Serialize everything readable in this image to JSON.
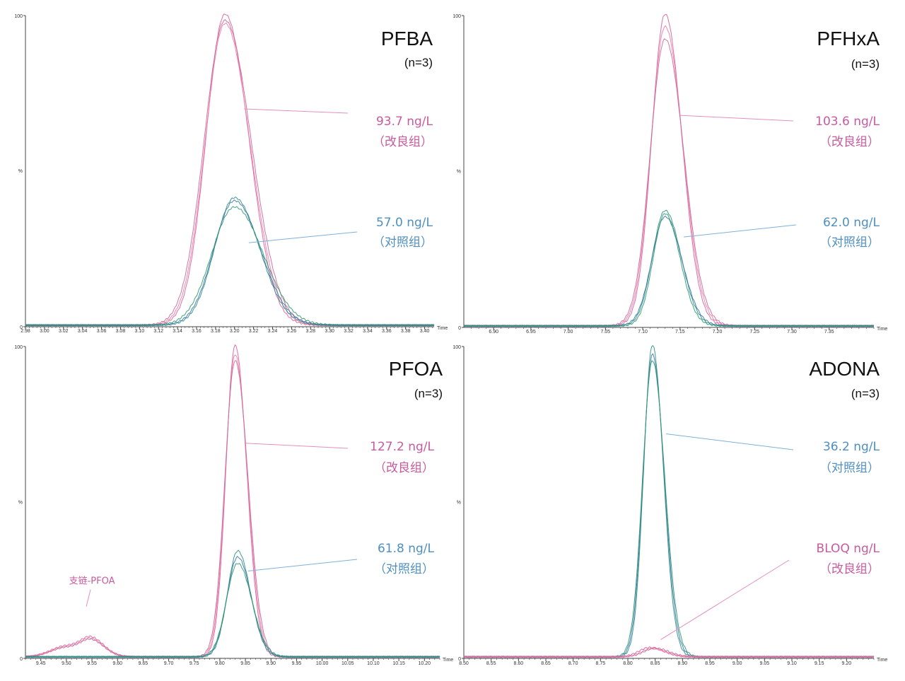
{
  "colors": {
    "pink": "#c85a9e",
    "pink_line": "#e28fbf",
    "blue": "#4f8fbf",
    "blue_line": "#7fb1d6",
    "trace_pink": [
      "#d9609e",
      "#f07aa6",
      "#c9699a"
    ],
    "trace_blue": [
      "#2f8f7f",
      "#3a72b0",
      "#2a9a6a"
    ],
    "axis": "#444444"
  },
  "chart_data": [
    {
      "id": "pfba",
      "type": "line",
      "title": "PFBA",
      "subtitle": "(n=3)",
      "xlabel": "Time",
      "ylabel": "%",
      "xlim": [
        2.98,
        3.41
      ],
      "ylim": [
        0,
        100
      ],
      "grid": false,
      "x_ticks": [
        "2.98",
        "3.00",
        "3.02",
        "3.04",
        "3.06",
        "3.08",
        "3.10",
        "3.12",
        "3.14",
        "3.16",
        "3.18",
        "3.20",
        "3.22",
        "3.24",
        "3.26",
        "3.28",
        "3.30",
        "3.32",
        "3.34",
        "3.36",
        "3.38",
        "3.40"
      ],
      "y_ticks": [
        "0",
        "100"
      ],
      "series": [
        {
          "group": "pink",
          "peaks": [
            {
              "center": 3.19,
              "height": 100,
              "sigma": 0.02
            }
          ]
        },
        {
          "group": "pink",
          "peaks": [
            {
              "center": 3.19,
              "height": 97,
              "sigma": 0.021
            }
          ]
        },
        {
          "group": "pink",
          "peaks": [
            {
              "center": 3.19,
              "height": 98,
              "sigma": 0.022
            }
          ]
        },
        {
          "group": "blue",
          "peaks": [
            {
              "center": 3.2,
              "height": 41,
              "sigma": 0.021
            }
          ]
        },
        {
          "group": "blue",
          "peaks": [
            {
              "center": 3.2,
              "height": 40,
              "sigma": 0.022
            }
          ]
        },
        {
          "group": "blue",
          "peaks": [
            {
              "center": 3.2,
              "height": 38,
              "sigma": 0.024
            }
          ]
        }
      ],
      "annotations": [
        {
          "value": "93.7 ng/L",
          "group_label": "（改良组）",
          "color": "pink",
          "pointer_from": [
            3.21,
            70
          ]
        },
        {
          "value": "57.0 ng/L",
          "group_label": "（对照组）",
          "color": "blue",
          "pointer_from": [
            3.215,
            27
          ]
        }
      ]
    },
    {
      "id": "pfhxa",
      "type": "line",
      "title": "PFHxA",
      "subtitle": "(n=3)",
      "xlabel": "Time",
      "ylabel": "%",
      "xlim": [
        6.86,
        7.41
      ],
      "ylim": [
        0,
        100
      ],
      "grid": false,
      "x_ticks": [
        "6.90",
        "6.95",
        "7.00",
        "7.05",
        "7.10",
        "7.15",
        "7.20",
        "7.25",
        "7.30",
        "7.35"
      ],
      "y_ticks": [
        "0",
        "100"
      ],
      "series": [
        {
          "group": "pink",
          "peaks": [
            {
              "center": 7.13,
              "height": 100,
              "sigma": 0.018
            }
          ]
        },
        {
          "group": "pink",
          "peaks": [
            {
              "center": 7.13,
              "height": 96,
              "sigma": 0.019
            }
          ]
        },
        {
          "group": "pink",
          "peaks": [
            {
              "center": 7.13,
              "height": 92,
              "sigma": 0.02
            }
          ]
        },
        {
          "group": "blue",
          "peaks": [
            {
              "center": 7.13,
              "height": 37,
              "sigma": 0.017
            }
          ]
        },
        {
          "group": "blue",
          "peaks": [
            {
              "center": 7.13,
              "height": 35,
              "sigma": 0.018
            }
          ]
        },
        {
          "group": "blue",
          "peaks": [
            {
              "center": 7.13,
              "height": 36,
              "sigma": 0.016
            }
          ]
        }
      ],
      "annotations": [
        {
          "value": "103.6 ng/L",
          "group_label": "（改良组）",
          "color": "pink",
          "pointer_from": [
            7.15,
            68
          ]
        },
        {
          "value": "62.0 ng/L",
          "group_label": "（对照组）",
          "color": "blue",
          "pointer_from": [
            7.155,
            29
          ]
        }
      ]
    },
    {
      "id": "pfoa",
      "type": "line",
      "title": "PFOA",
      "subtitle": "(n=3)",
      "xlabel": "Time",
      "ylabel": "%",
      "xlim": [
        9.42,
        10.23
      ],
      "ylim": [
        0,
        100
      ],
      "grid": false,
      "x_ticks": [
        "9.45",
        "9.50",
        "9.55",
        "9.60",
        "9.65",
        "9.70",
        "9.75",
        "9.80",
        "9.85",
        "9.90",
        "9.95",
        "10.00",
        "10.05",
        "10.10",
        "10.15",
        "10.20"
      ],
      "y_ticks": [
        "0",
        "100"
      ],
      "series": [
        {
          "group": "pink",
          "peaks": [
            {
              "center": 9.83,
              "height": 100,
              "sigma": 0.018
            },
            {
              "center": 9.5,
              "height": 3.5,
              "sigma": 0.03
            },
            {
              "center": 9.55,
              "height": 5,
              "sigma": 0.02
            }
          ]
        },
        {
          "group": "pink",
          "peaks": [
            {
              "center": 9.83,
              "height": 97,
              "sigma": 0.019
            },
            {
              "center": 9.5,
              "height": 3.2,
              "sigma": 0.03
            },
            {
              "center": 9.55,
              "height": 4.6,
              "sigma": 0.02
            }
          ]
        },
        {
          "group": "pink",
          "peaks": [
            {
              "center": 9.83,
              "height": 95,
              "sigma": 0.02
            },
            {
              "center": 9.5,
              "height": 3.0,
              "sigma": 0.03
            },
            {
              "center": 9.55,
              "height": 4.4,
              "sigma": 0.02
            }
          ]
        },
        {
          "group": "blue",
          "peaks": [
            {
              "center": 9.835,
              "height": 34,
              "sigma": 0.02
            }
          ]
        },
        {
          "group": "blue",
          "peaks": [
            {
              "center": 9.835,
              "height": 32,
              "sigma": 0.021
            }
          ]
        },
        {
          "group": "blue",
          "peaks": [
            {
              "center": 9.835,
              "height": 30,
              "sigma": 0.022
            }
          ]
        }
      ],
      "annotations": [
        {
          "value": "127.2 ng/L",
          "group_label": "（改良组）",
          "color": "pink",
          "pointer_from": [
            9.85,
            69
          ]
        },
        {
          "value": "61.8 ng/L",
          "group_label": "（对照组）",
          "color": "blue",
          "pointer_from": [
            9.855,
            28
          ]
        },
        {
          "value": "支链-PFOA",
          "color": "pink",
          "pointer_from": [
            9.55,
            8
          ]
        }
      ]
    },
    {
      "id": "adona",
      "type": "line",
      "title": "ADONA",
      "subtitle": "(n=3)",
      "xlabel": "Time",
      "ylabel": "%",
      "xlim": [
        8.5,
        9.25
      ],
      "ylim": [
        0,
        100
      ],
      "grid": false,
      "x_ticks": [
        "8.50",
        "8.55",
        "8.60",
        "8.65",
        "8.70",
        "8.75",
        "8.80",
        "8.85",
        "8.90",
        "8.95",
        "9.00",
        "9.05",
        "9.10",
        "9.15",
        "9.20"
      ],
      "y_ticks": [
        "0",
        "100"
      ],
      "series": [
        {
          "group": "blue",
          "peaks": [
            {
              "center": 8.845,
              "height": 100,
              "sigma": 0.016
            }
          ]
        },
        {
          "group": "blue",
          "peaks": [
            {
              "center": 8.845,
              "height": 97,
              "sigma": 0.017
            }
          ]
        },
        {
          "group": "blue",
          "peaks": [
            {
              "center": 8.845,
              "height": 95,
              "sigma": 0.018
            }
          ]
        },
        {
          "group": "pink",
          "peaks": [
            {
              "center": 8.84,
              "height": 3,
              "sigma": 0.02
            }
          ]
        },
        {
          "group": "pink",
          "peaks": [
            {
              "center": 8.845,
              "height": 2.6,
              "sigma": 0.02
            }
          ]
        },
        {
          "group": "pink",
          "peaks": [
            {
              "center": 8.85,
              "height": 2.8,
              "sigma": 0.02
            }
          ]
        }
      ],
      "annotations": [
        {
          "value": "36.2 ng/L",
          "group_label": "（对照组）",
          "color": "blue",
          "pointer_from": [
            8.87,
            72
          ]
        },
        {
          "value": "BLOQ ng/L",
          "group_label": "（改良组）",
          "color": "pink",
          "pointer_from": [
            8.86,
            6
          ]
        }
      ]
    }
  ]
}
